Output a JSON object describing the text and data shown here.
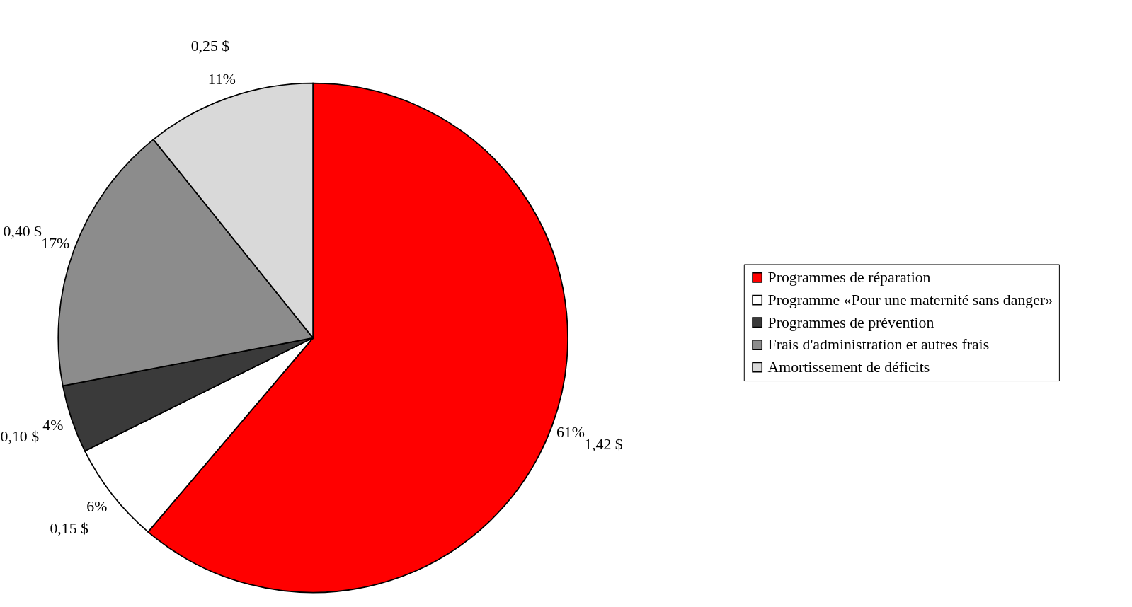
{
  "chart_data": {
    "type": "pie",
    "categories": [
      "Programmes de réparation",
      "Programme «Pour une maternité sans danger»",
      "Programmes de prévention",
      "Frais d'administration et autres frais",
      "Amortissement de déficits"
    ],
    "values": [
      1.42,
      0.15,
      0.1,
      0.4,
      0.25
    ],
    "colors": [
      "#ff0000",
      "#ffffff",
      "#3a3a3a",
      "#8c8c8c",
      "#d9d9d9"
    ],
    "value_labels": [
      "1,42 $",
      "0,15 $",
      "0,10 $",
      "0,40 $",
      "0,25 $"
    ],
    "annotations": [
      {
        "text": "61%",
        "x": "Programmes de réparation"
      },
      {
        "text": "6%",
        "x": "Programme «Pour une maternité sans danger»"
      },
      {
        "text": "4%",
        "x": "Programmes de prévention"
      },
      {
        "text": "17%",
        "x": "Frais d'administration et autres frais"
      },
      {
        "text": "11%",
        "x": "Amortissement de déficits"
      }
    ],
    "legend": "right"
  }
}
